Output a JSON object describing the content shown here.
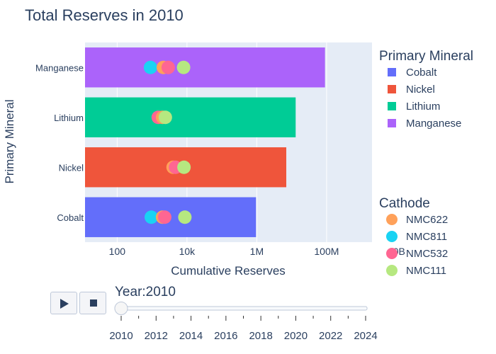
{
  "chart_data": {
    "type": "bar",
    "orientation": "horizontal",
    "title": "Total Reserves in 2010",
    "xlabel": "Cumulative Reserves",
    "ylabel": "Primary Mineral",
    "x_scale": "log",
    "xlim": [
      12,
      2000000000
    ],
    "x_ticks": [
      {
        "value": 100,
        "label": "100"
      },
      {
        "value": 10000,
        "label": "10k"
      },
      {
        "value": 1000000,
        "label": "1M"
      },
      {
        "value": 100000000,
        "label": "100M"
      },
      {
        "value": 10000000000,
        "label": "10B"
      }
    ],
    "categories": [
      "Cobalt",
      "Nickel",
      "Lithium",
      "Manganese"
    ],
    "bars": [
      {
        "category": "Cobalt",
        "value": 950000,
        "color": "#636efa"
      },
      {
        "category": "Nickel",
        "value": 7000000,
        "color": "#ef553b"
      },
      {
        "category": "Lithium",
        "value": 13000000,
        "color": "#00cc96"
      },
      {
        "category": "Manganese",
        "value": 90000000,
        "color": "#ab63fa"
      }
    ],
    "points": [
      {
        "category": "Manganese",
        "cathode": "NMC811",
        "value": 900
      },
      {
        "category": "Manganese",
        "cathode": "NMC622",
        "value": 2100
      },
      {
        "category": "Manganese",
        "cathode": "NMC532",
        "value": 2900
      },
      {
        "category": "Manganese",
        "cathode": "NMC111",
        "value": 8000
      },
      {
        "category": "Lithium",
        "cathode": "NMC532",
        "value": 1500
      },
      {
        "category": "Lithium",
        "cathode": "NMC622",
        "value": 2000
      },
      {
        "category": "Lithium",
        "cathode": "NMC111",
        "value": 2400
      },
      {
        "category": "Nickel",
        "cathode": "NMC622",
        "value": 4000
      },
      {
        "category": "Nickel",
        "cathode": "NMC532",
        "value": 4700
      },
      {
        "category": "Nickel",
        "cathode": "NMC111",
        "value": 8200
      },
      {
        "category": "Cobalt",
        "cathode": "NMC811",
        "value": 950
      },
      {
        "category": "Cobalt",
        "cathode": "NMC622",
        "value": 2000
      },
      {
        "category": "Cobalt",
        "cathode": "NMC532",
        "value": 2300
      },
      {
        "category": "Cobalt",
        "cathode": "NMC111",
        "value": 8700
      }
    ],
    "legend_bars": {
      "title": "Primary Mineral",
      "items": [
        {
          "label": "Cobalt",
          "color": "#636efa"
        },
        {
          "label": "Nickel",
          "color": "#ef553b"
        },
        {
          "label": "Lithium",
          "color": "#00cc96"
        },
        {
          "label": "Manganese",
          "color": "#ab63fa"
        }
      ]
    },
    "legend_points": {
      "title": "Cathode",
      "items": [
        {
          "label": "NMC622",
          "color": "#ffa15a"
        },
        {
          "label": "NMC811",
          "color": "#19d3f3"
        },
        {
          "label": "NMC532",
          "color": "#ff6692"
        },
        {
          "label": "NMC111",
          "color": "#b6e880"
        }
      ]
    },
    "grid": true,
    "plot_bg": "#e5ecf6",
    "legend_position": "right"
  },
  "slider": {
    "prefix": "Year:",
    "current": "2010",
    "ticks": [
      "2010",
      "2012",
      "2014",
      "2016",
      "2018",
      "2020",
      "2022",
      "2024"
    ],
    "min": 2010,
    "max": 2024,
    "value": 2010
  },
  "controls": {
    "play_icon": "play-icon",
    "stop_icon": "stop-icon"
  }
}
